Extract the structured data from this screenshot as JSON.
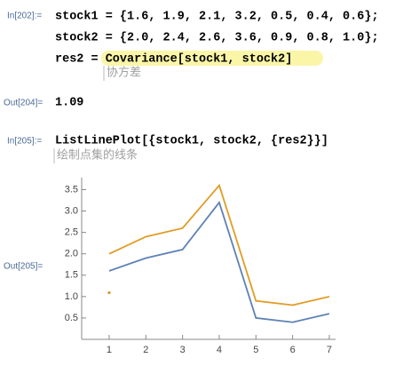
{
  "cells": [
    {
      "label": "In[202]:=",
      "lines": [
        "stock1 = {1.6, 1.9, 2.1, 3.2, 0.5, 0.4, 0.6};",
        "stock2 = {2.0, 2.4, 2.6, 3.6, 0.9, 0.8, 1.0};",
        "res2 = "
      ],
      "highlight": "Covariance[stock1, stock2]",
      "annotation": "协方差"
    },
    {
      "label": "Out[204]=",
      "text": "1.09"
    },
    {
      "label": "In[205]:=",
      "lines": [
        "ListLinePlot[{stock1, stock2, {res2}}]"
      ],
      "annotation": "绘制点集的线条"
    },
    {
      "label": "Out[205]="
    }
  ],
  "chart_data": {
    "type": "line",
    "series": [
      {
        "color": "#5e81b5",
        "x": [
          1,
          2,
          3,
          4,
          5,
          6,
          7
        ],
        "values": [
          1.6,
          1.9,
          2.1,
          3.2,
          0.5,
          0.4,
          0.6
        ]
      },
      {
        "color": "#e19c24",
        "x": [
          1,
          2,
          3,
          4,
          5,
          6,
          7
        ],
        "values": [
          2.0,
          2.4,
          2.6,
          3.6,
          0.9,
          0.8,
          1.0
        ]
      },
      {
        "color": "#d09a30",
        "x": [
          1
        ],
        "values": [
          1.09
        ]
      }
    ],
    "xlim": [
      0.25,
      7.17
    ],
    "ylim": [
      0,
      3.78
    ],
    "xticks": [
      1,
      2,
      3,
      4,
      5,
      6,
      7
    ],
    "yticks": [
      0.5,
      {
        "value": 1,
        "label": "1.0"
      },
      1.5,
      {
        "value": 2,
        "label": "2.0"
      },
      2.5,
      {
        "value": 3,
        "label": "3.0"
      },
      3.5
    ]
  }
}
